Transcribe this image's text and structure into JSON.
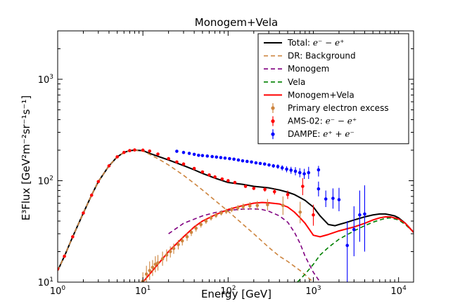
{
  "chart_data": {
    "type": "line",
    "title": "Monogem+Vela",
    "xlabel": "Energy [GeV]",
    "ylabel": "E³Flux [GeV²m⁻²sr⁻¹s⁻¹]",
    "xscale": "log",
    "yscale": "log",
    "xlim": [
      1,
      15000
    ],
    "ylim": [
      10,
      3000
    ],
    "x_ticks": [
      {
        "value": 1,
        "base": "10",
        "exp": "0"
      },
      {
        "value": 10,
        "base": "10",
        "exp": "1"
      },
      {
        "value": 100,
        "base": "10",
        "exp": "2"
      },
      {
        "value": 1000,
        "base": "10",
        "exp": "3"
      },
      {
        "value": 10000,
        "base": "10",
        "exp": "4"
      }
    ],
    "y_ticks": [
      {
        "value": 10,
        "base": "10",
        "exp": "1"
      },
      {
        "value": 100,
        "base": "10",
        "exp": "2"
      },
      {
        "value": 1000,
        "base": "10",
        "exp": "3"
      }
    ],
    "legend": {
      "placement": "top-right",
      "entries": [
        {
          "label": "Total: ",
          "math": "e⁻ − e⁺",
          "style": "line",
          "color": "#000000",
          "dash": "solid"
        },
        {
          "label": "DR: Background",
          "math": "",
          "style": "line",
          "color": "#cd853f",
          "dash": "dashed"
        },
        {
          "label": "Monogem",
          "math": "",
          "style": "line",
          "color": "#800080",
          "dash": "dashed"
        },
        {
          "label": "Vela",
          "math": "",
          "style": "line",
          "color": "#008000",
          "dash": "dashed"
        },
        {
          "label": "Monogem+Vela",
          "math": "",
          "style": "line",
          "color": "#ff0000",
          "dash": "solid"
        },
        {
          "label": "Primary electron excess",
          "math": "",
          "style": "errorbar",
          "color": "#cd853f"
        },
        {
          "label": "AMS-02: ",
          "math": "e⁻ − e⁺",
          "style": "errorbar",
          "color": "#ff0000"
        },
        {
          "label": "DAMPE: ",
          "math": "e⁺ + e⁻",
          "style": "errorbar",
          "color": "#0000ff"
        }
      ]
    },
    "series": [
      {
        "name": "Total: e⁻ − e⁺",
        "kind": "line",
        "color": "#000000",
        "dash": "solid",
        "width": 2,
        "x": [
          1,
          1.2,
          1.5,
          2,
          2.5,
          3,
          4,
          5,
          6,
          7,
          8,
          10,
          12,
          15,
          20,
          30,
          40,
          50,
          70,
          100,
          150,
          200,
          300,
          400,
          500,
          600,
          700,
          800,
          900,
          1000,
          1200,
          1500,
          1800,
          2000,
          2500,
          3000,
          4000,
          5000,
          6000,
          7000,
          8000,
          9000,
          10000,
          12000,
          15000
        ],
        "y": [
          13,
          18,
          28,
          48,
          72,
          98,
          140,
          172,
          190,
          198,
          200,
          198,
          186,
          174,
          160,
          141,
          128,
          118,
          106,
          96,
          92,
          88,
          85,
          81,
          77,
          73,
          68,
          64,
          59,
          55,
          45,
          37,
          36,
          37,
          39,
          41,
          44,
          46,
          47,
          47,
          46,
          45,
          43,
          38,
          31
        ]
      },
      {
        "name": "DR: Background",
        "kind": "line",
        "color": "#cd853f",
        "dash": "dashed",
        "width": 1.6,
        "x": [
          1,
          1.2,
          1.5,
          2,
          2.5,
          3,
          4,
          5,
          6,
          7,
          8,
          10,
          12,
          15,
          20,
          30,
          40,
          50,
          70,
          100,
          150,
          200,
          300,
          400,
          500,
          600,
          700,
          800,
          900,
          1000
        ],
        "y": [
          13,
          18,
          28,
          48,
          72,
          98,
          140,
          172,
          190,
          198,
          200,
          196,
          182,
          165,
          143,
          113,
          94,
          81,
          64,
          50,
          37,
          30,
          22,
          18,
          16,
          14.3,
          13,
          11.8,
          10.8,
          10
        ]
      },
      {
        "name": "Monogem",
        "kind": "line",
        "color": "#800080",
        "dash": "dashed",
        "width": 1.6,
        "x": [
          20,
          30,
          50,
          70,
          100,
          150,
          200,
          250,
          300,
          400,
          500,
          600,
          700,
          800,
          1000,
          1200
        ],
        "y": [
          30,
          38,
          45,
          48.5,
          51,
          52.5,
          52.8,
          52,
          50,
          45,
          39,
          31,
          24,
          18,
          12.5,
          10
        ]
      },
      {
        "name": "Vela",
        "kind": "line",
        "color": "#008000",
        "dash": "dashed",
        "width": 1.6,
        "x": [
          650,
          800,
          1000,
          1200,
          1500,
          2000,
          3000,
          4000,
          5000,
          6000,
          7000,
          8000,
          10000,
          12000,
          15000
        ],
        "y": [
          10,
          12,
          15,
          18.5,
          22,
          26.5,
          32,
          36,
          39,
          41,
          42.5,
          43,
          41,
          37,
          31
        ]
      },
      {
        "name": "Monogem+Vela",
        "kind": "line",
        "color": "#ff0000",
        "dash": "solid",
        "width": 2,
        "x": [
          10,
          15,
          20,
          30,
          40,
          50,
          70,
          100,
          150,
          200,
          250,
          300,
          400,
          500,
          600,
          700,
          800,
          900,
          1000,
          1200,
          1500,
          2000,
          3000,
          4000,
          5000,
          6000,
          7000,
          8000,
          10000,
          12000,
          15000
        ],
        "y": [
          10,
          15,
          20,
          28,
          35,
          40,
          46,
          52,
          57,
          60,
          61,
          60.5,
          59,
          55,
          49,
          43,
          38,
          33,
          29,
          28,
          29.5,
          32,
          35,
          38,
          41,
          43,
          44,
          44,
          42,
          38,
          31
        ]
      }
    ],
    "points": [
      {
        "name": "Primary electron excess",
        "color": "#cd853f",
        "data": [
          {
            "x": 10,
            "y": 10.2,
            "lo": 8.5,
            "hi": 12.5
          },
          {
            "x": 11,
            "y": 12,
            "lo": 9.5,
            "hi": 14.5
          },
          {
            "x": 12,
            "y": 13,
            "lo": 10.5,
            "hi": 16
          },
          {
            "x": 13,
            "y": 14,
            "lo": 11.5,
            "hi": 16.5
          },
          {
            "x": 14,
            "y": 15,
            "lo": 12.5,
            "hi": 18
          },
          {
            "x": 15,
            "y": 15.5,
            "lo": 13,
            "hi": 18.5
          },
          {
            "x": 17,
            "y": 17,
            "lo": 14.5,
            "hi": 20
          },
          {
            "x": 19,
            "y": 18.5,
            "lo": 16,
            "hi": 21
          },
          {
            "x": 21,
            "y": 20,
            "lo": 17.5,
            "hi": 22.5
          },
          {
            "x": 23,
            "y": 21.5,
            "lo": 19,
            "hi": 24
          },
          {
            "x": 26,
            "y": 23.5,
            "lo": 21,
            "hi": 26
          },
          {
            "x": 29,
            "y": 25.5,
            "lo": 23,
            "hi": 28
          },
          {
            "x": 33,
            "y": 28,
            "lo": 25.5,
            "hi": 30.5
          },
          {
            "x": 37,
            "y": 31,
            "lo": 28.5,
            "hi": 33.5
          },
          {
            "x": 42,
            "y": 34,
            "lo": 31.5,
            "hi": 36.5
          },
          {
            "x": 48,
            "y": 37,
            "lo": 34.5,
            "hi": 39.5
          },
          {
            "x": 55,
            "y": 40,
            "lo": 37.5,
            "hi": 42.5
          },
          {
            "x": 63,
            "y": 43,
            "lo": 40.5,
            "hi": 45.5
          },
          {
            "x": 72,
            "y": 45.5,
            "lo": 43,
            "hi": 48.5
          },
          {
            "x": 83,
            "y": 48,
            "lo": 45.5,
            "hi": 51
          },
          {
            "x": 95,
            "y": 50,
            "lo": 47,
            "hi": 53
          },
          {
            "x": 110,
            "y": 52,
            "lo": 49,
            "hi": 55
          },
          {
            "x": 130,
            "y": 54,
            "lo": 50.5,
            "hi": 57.5
          },
          {
            "x": 150,
            "y": 55.5,
            "lo": 51.5,
            "hi": 59.5
          },
          {
            "x": 180,
            "y": 56.5,
            "lo": 52,
            "hi": 61.5
          },
          {
            "x": 220,
            "y": 57,
            "lo": 51.5,
            "hi": 63
          },
          {
            "x": 290,
            "y": 58,
            "lo": 51,
            "hi": 66
          },
          {
            "x": 440,
            "y": 57,
            "lo": 46,
            "hi": 70
          },
          {
            "x": 700,
            "y": 49,
            "lo": 38,
            "hi": 62
          }
        ]
      },
      {
        "name": "AMS-02: e⁻ − e⁺",
        "color": "#ff0000",
        "data": [
          {
            "x": 1,
            "y": 13.5,
            "lo": 13,
            "hi": 14
          },
          {
            "x": 1.2,
            "y": 18,
            "lo": 17.5,
            "hi": 18.5
          },
          {
            "x": 1.5,
            "y": 28,
            "lo": 27.5,
            "hi": 28.5
          },
          {
            "x": 2,
            "y": 48,
            "lo": 47,
            "hi": 49
          },
          {
            "x": 2.5,
            "y": 72,
            "lo": 71,
            "hi": 73
          },
          {
            "x": 3,
            "y": 98,
            "lo": 97,
            "hi": 99
          },
          {
            "x": 4,
            "y": 140,
            "lo": 138,
            "hi": 142
          },
          {
            "x": 5,
            "y": 172,
            "lo": 170,
            "hi": 174
          },
          {
            "x": 6,
            "y": 190,
            "lo": 188,
            "hi": 192
          },
          {
            "x": 7,
            "y": 198,
            "lo": 196,
            "hi": 200
          },
          {
            "x": 8,
            "y": 201,
            "lo": 199,
            "hi": 203
          },
          {
            "x": 10,
            "y": 200,
            "lo": 198,
            "hi": 202
          },
          {
            "x": 12,
            "y": 196,
            "lo": 194,
            "hi": 198
          },
          {
            "x": 15,
            "y": 183,
            "lo": 181,
            "hi": 185
          },
          {
            "x": 20,
            "y": 165,
            "lo": 163,
            "hi": 167
          },
          {
            "x": 25,
            "y": 153,
            "lo": 151,
            "hi": 155
          },
          {
            "x": 30,
            "y": 146,
            "lo": 144,
            "hi": 148
          },
          {
            "x": 40,
            "y": 132,
            "lo": 130,
            "hi": 134
          },
          {
            "x": 50,
            "y": 122,
            "lo": 120,
            "hi": 124
          },
          {
            "x": 60,
            "y": 114,
            "lo": 112,
            "hi": 116
          },
          {
            "x": 70,
            "y": 109,
            "lo": 107,
            "hi": 111
          },
          {
            "x": 85,
            "y": 104,
            "lo": 102,
            "hi": 106
          },
          {
            "x": 100,
            "y": 100,
            "lo": 98,
            "hi": 102
          },
          {
            "x": 120,
            "y": 96,
            "lo": 93,
            "hi": 99
          },
          {
            "x": 160,
            "y": 88,
            "lo": 85,
            "hi": 91
          },
          {
            "x": 200,
            "y": 84,
            "lo": 81,
            "hi": 87
          },
          {
            "x": 270,
            "y": 82,
            "lo": 78,
            "hi": 86
          },
          {
            "x": 350,
            "y": 78,
            "lo": 73,
            "hi": 83
          },
          {
            "x": 500,
            "y": 73,
            "lo": 66,
            "hi": 80
          },
          {
            "x": 750,
            "y": 88,
            "lo": 72,
            "hi": 106
          },
          {
            "x": 1000,
            "y": 46,
            "lo": 36,
            "hi": 58
          }
        ]
      },
      {
        "name": "DAMPE: e⁺ + e⁻",
        "color": "#0000ff",
        "data": [
          {
            "x": 25,
            "y": 195,
            "lo": 192,
            "hi": 198
          },
          {
            "x": 30,
            "y": 190,
            "lo": 187,
            "hi": 193
          },
          {
            "x": 35,
            "y": 186,
            "lo": 183,
            "hi": 189
          },
          {
            "x": 40,
            "y": 182,
            "lo": 179,
            "hi": 185
          },
          {
            "x": 45,
            "y": 178,
            "lo": 175,
            "hi": 181
          },
          {
            "x": 50,
            "y": 177,
            "lo": 174,
            "hi": 180
          },
          {
            "x": 57,
            "y": 175,
            "lo": 172,
            "hi": 178
          },
          {
            "x": 65,
            "y": 173,
            "lo": 170,
            "hi": 176
          },
          {
            "x": 73,
            "y": 171,
            "lo": 168,
            "hi": 174
          },
          {
            "x": 82,
            "y": 169,
            "lo": 166,
            "hi": 172
          },
          {
            "x": 92,
            "y": 167,
            "lo": 164,
            "hi": 170
          },
          {
            "x": 104,
            "y": 165,
            "lo": 162,
            "hi": 168
          },
          {
            "x": 117,
            "y": 163,
            "lo": 160,
            "hi": 166
          },
          {
            "x": 132,
            "y": 160,
            "lo": 157,
            "hi": 163
          },
          {
            "x": 148,
            "y": 157,
            "lo": 154,
            "hi": 160
          },
          {
            "x": 167,
            "y": 155,
            "lo": 152,
            "hi": 158
          },
          {
            "x": 188,
            "y": 153,
            "lo": 150,
            "hi": 156
          },
          {
            "x": 212,
            "y": 150,
            "lo": 146,
            "hi": 154
          },
          {
            "x": 238,
            "y": 148,
            "lo": 144,
            "hi": 152
          },
          {
            "x": 268,
            "y": 146,
            "lo": 142,
            "hi": 150
          },
          {
            "x": 302,
            "y": 143,
            "lo": 138,
            "hi": 148
          },
          {
            "x": 340,
            "y": 140,
            "lo": 134,
            "hi": 146
          },
          {
            "x": 383,
            "y": 138,
            "lo": 131,
            "hi": 145
          },
          {
            "x": 431,
            "y": 134,
            "lo": 126,
            "hi": 142
          },
          {
            "x": 486,
            "y": 130,
            "lo": 121,
            "hi": 139
          },
          {
            "x": 547,
            "y": 127,
            "lo": 117,
            "hi": 137
          },
          {
            "x": 616,
            "y": 124,
            "lo": 113,
            "hi": 136
          },
          {
            "x": 694,
            "y": 120,
            "lo": 108,
            "hi": 133
          },
          {
            "x": 782,
            "y": 117,
            "lo": 104,
            "hi": 131
          },
          {
            "x": 880,
            "y": 120,
            "lo": 104,
            "hi": 137
          },
          {
            "x": 1150,
            "y": 128,
            "lo": 110,
            "hi": 140
          },
          {
            "x": 1150,
            "y": 83,
            "lo": 70,
            "hi": 98
          },
          {
            "x": 1400,
            "y": 66,
            "lo": 55,
            "hi": 80
          },
          {
            "x": 1700,
            "y": 67,
            "lo": 53,
            "hi": 84
          },
          {
            "x": 2000,
            "y": 65,
            "lo": 50,
            "hi": 85
          },
          {
            "x": 2500,
            "y": 23,
            "lo": 10,
            "hi": 40
          },
          {
            "x": 3000,
            "y": 33,
            "lo": 18,
            "hi": 56
          },
          {
            "x": 3500,
            "y": 46,
            "lo": 25,
            "hi": 80
          },
          {
            "x": 4000,
            "y": 47,
            "lo": 20,
            "hi": 90
          }
        ]
      }
    ]
  }
}
